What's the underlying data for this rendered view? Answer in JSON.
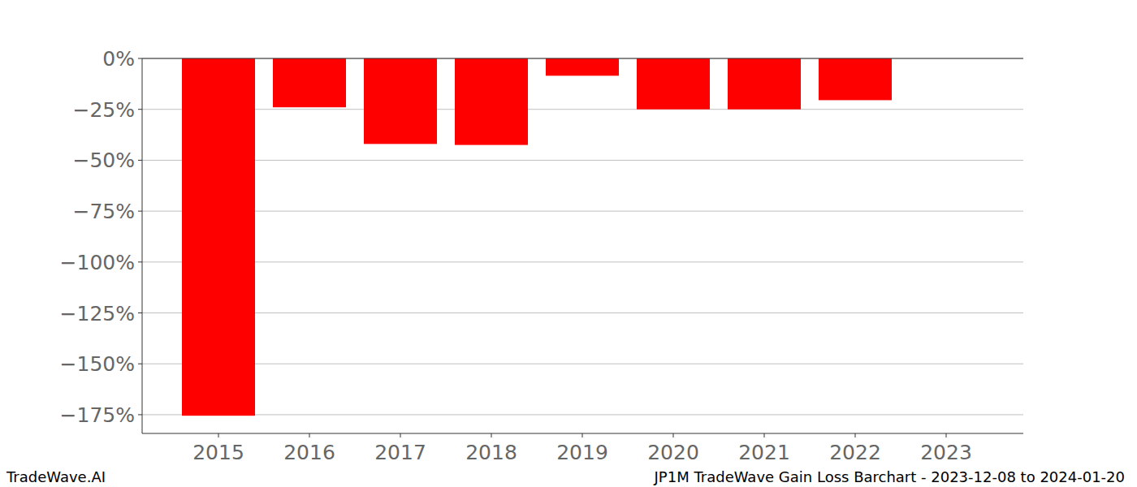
{
  "chart_data": {
    "type": "bar",
    "title": "JP1M TradeWave Gain Loss Barchart - 2023-12-08 to 2024-01-20",
    "annotations": [
      "TradeWave.AI"
    ],
    "categories": [
      "2015",
      "2016",
      "2017",
      "2018",
      "2019",
      "2020",
      "2021",
      "2022",
      "2023"
    ],
    "values": [
      -175.5,
      -24,
      -42,
      -42.5,
      -8.5,
      -25,
      -25,
      -20.5,
      0
    ],
    "color": "#ff0000",
    "ylim": [
      -184.2,
      0
    ],
    "yticks": [
      {
        "value": 0,
        "label": "0%"
      },
      {
        "value": -25,
        "label": "−25%"
      },
      {
        "value": -50,
        "label": "−50%"
      },
      {
        "value": -75,
        "label": "−75%"
      },
      {
        "value": -100,
        "label": "−100%"
      },
      {
        "value": -125,
        "label": "−125%"
      },
      {
        "value": -150,
        "label": "−150%"
      },
      {
        "value": -175,
        "label": "−175%"
      }
    ],
    "grid": true
  }
}
